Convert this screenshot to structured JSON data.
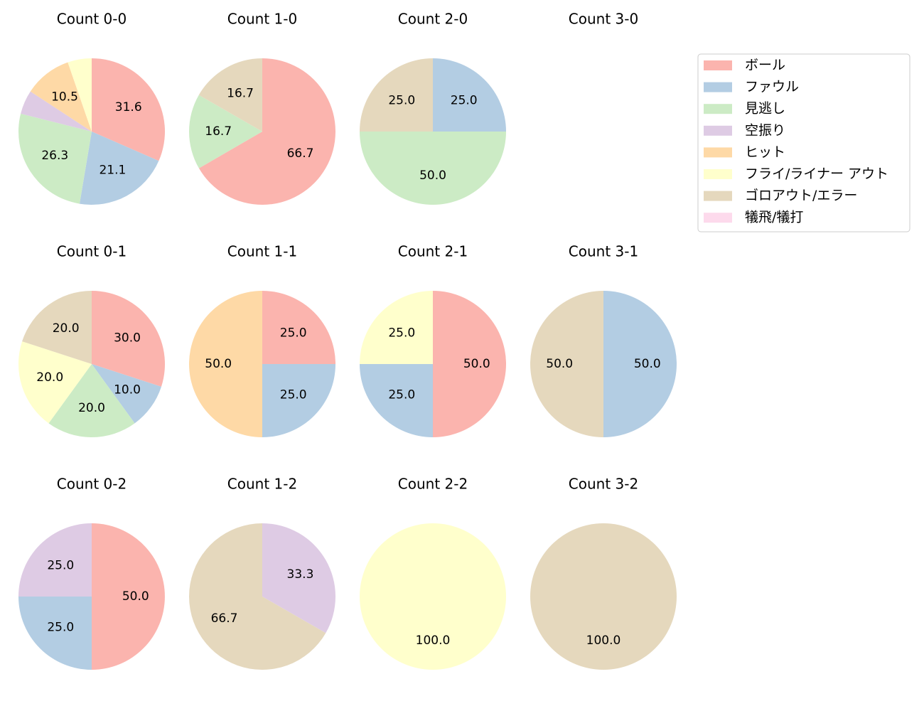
{
  "legend": {
    "entries": [
      "ボール",
      "ファウル",
      "見逃し",
      "空振り",
      "ヒット",
      "フライ/ライナー アウト",
      "ゴロアウト/エラー",
      "犠飛/犠打"
    ],
    "colors": [
      "#fbb4ae",
      "#b3cde3",
      "#ccebc5",
      "#decbe4",
      "#fed9a6",
      "#ffffcc",
      "#e5d8bd",
      "#fddaec"
    ]
  },
  "chart_data": [
    {
      "type": "pie",
      "title": "Count 0-0",
      "categories": [
        "ボール",
        "ファウル",
        "見逃し",
        "空振り",
        "ヒット",
        "フライ/ライナー アウト"
      ],
      "values": [
        31.6,
        21.1,
        26.3,
        5.3,
        10.5,
        5.3
      ],
      "value_labels": [
        "31.6",
        "21.1",
        "26.3",
        null,
        "10.5",
        null
      ],
      "colors": [
        "#fbb4ae",
        "#b3cde3",
        "#ccebc5",
        "#decbe4",
        "#fed9a6",
        "#ffffcc"
      ]
    },
    {
      "type": "pie",
      "title": "Count 1-0",
      "categories": [
        "ボール",
        "見逃し",
        "ゴロアウト/エラー"
      ],
      "values": [
        66.7,
        16.7,
        16.7
      ],
      "value_labels": [
        "66.7",
        "16.7",
        "16.7"
      ],
      "colors": [
        "#fbb4ae",
        "#ccebc5",
        "#e5d8bd"
      ]
    },
    {
      "type": "pie",
      "title": "Count 2-0",
      "categories": [
        "ファウル",
        "見逃し",
        "ゴロアウト/エラー"
      ],
      "values": [
        25,
        50,
        25
      ],
      "value_labels": [
        "25.0",
        "50.0",
        "25.0"
      ],
      "colors": [
        "#b3cde3",
        "#ccebc5",
        "#e5d8bd"
      ]
    },
    {
      "type": "pie",
      "title": "Count 3-0",
      "categories": [],
      "values": [],
      "value_labels": [],
      "colors": []
    },
    {
      "type": "pie",
      "title": "Count 0-1",
      "categories": [
        "ボール",
        "ファウル",
        "見逃し",
        "フライ/ライナー アウト",
        "ゴロアウト/エラー"
      ],
      "values": [
        30,
        10,
        20,
        20,
        20
      ],
      "value_labels": [
        "30.0",
        "10.0",
        "20.0",
        "20.0",
        "20.0"
      ],
      "colors": [
        "#fbb4ae",
        "#b3cde3",
        "#ccebc5",
        "#ffffcc",
        "#e5d8bd"
      ]
    },
    {
      "type": "pie",
      "title": "Count 1-1",
      "categories": [
        "ボール",
        "ファウル",
        "ヒット"
      ],
      "values": [
        25,
        25,
        50
      ],
      "value_labels": [
        "25.0",
        "25.0",
        "50.0"
      ],
      "colors": [
        "#fbb4ae",
        "#b3cde3",
        "#fed9a6"
      ]
    },
    {
      "type": "pie",
      "title": "Count 2-1",
      "categories": [
        "ボール",
        "ファウル",
        "フライ/ライナー アウト"
      ],
      "values": [
        50,
        25,
        25
      ],
      "value_labels": [
        "50.0",
        "25.0",
        "25.0"
      ],
      "colors": [
        "#fbb4ae",
        "#b3cde3",
        "#ffffcc"
      ]
    },
    {
      "type": "pie",
      "title": "Count 3-1",
      "categories": [
        "ファウル",
        "ゴロアウト/エラー"
      ],
      "values": [
        50,
        50
      ],
      "value_labels": [
        "50.0",
        "50.0"
      ],
      "colors": [
        "#b3cde3",
        "#e5d8bd"
      ]
    },
    {
      "type": "pie",
      "title": "Count 0-2",
      "categories": [
        "ボール",
        "ファウル",
        "空振り"
      ],
      "values": [
        50,
        25,
        25
      ],
      "value_labels": [
        "50.0",
        "25.0",
        "25.0"
      ],
      "colors": [
        "#fbb4ae",
        "#b3cde3",
        "#decbe4"
      ]
    },
    {
      "type": "pie",
      "title": "Count 1-2",
      "categories": [
        "空振り",
        "ゴロアウト/エラー"
      ],
      "values": [
        33.3,
        66.7
      ],
      "value_labels": [
        "33.3",
        "66.7"
      ],
      "colors": [
        "#decbe4",
        "#e5d8bd"
      ]
    },
    {
      "type": "pie",
      "title": "Count 2-2",
      "categories": [
        "フライ/ライナー アウト"
      ],
      "values": [
        100
      ],
      "value_labels": [
        "100.0"
      ],
      "colors": [
        "#ffffcc"
      ]
    },
    {
      "type": "pie",
      "title": "Count 3-2",
      "categories": [
        "ゴロアウト/エラー"
      ],
      "values": [
        100
      ],
      "value_labels": [
        "100.0"
      ],
      "colors": [
        "#e5d8bd"
      ]
    }
  ]
}
